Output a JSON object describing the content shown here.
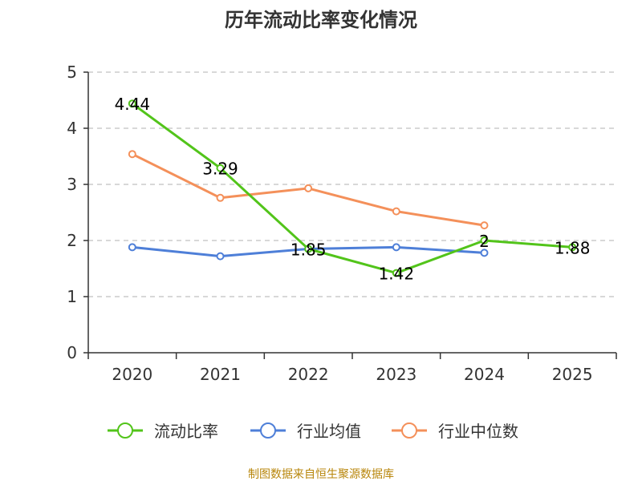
{
  "chart_data": {
    "type": "line",
    "title": "历年流动比率变化情况",
    "categories": [
      "2020",
      "2021",
      "2022",
      "2023",
      "2024",
      "2025"
    ],
    "ylim": [
      0,
      5
    ],
    "yticks": [
      "0",
      "1",
      "2",
      "3",
      "4",
      "5"
    ],
    "grid": true,
    "legend_position": "bottom",
    "series": [
      {
        "name": "流动比率",
        "color": "#52c41a",
        "values": [
          4.44,
          3.29,
          1.85,
          1.42,
          2.0,
          1.88
        ],
        "labels": [
          "4.44",
          "3.29",
          "1.85",
          "1.42",
          "2",
          "1.88"
        ]
      },
      {
        "name": "行业均值",
        "color": "#4e7fd8",
        "values": [
          1.88,
          1.72,
          1.85,
          1.88,
          1.78,
          null
        ]
      },
      {
        "name": "行业中位数",
        "color": "#f4905a",
        "values": [
          3.54,
          2.76,
          2.93,
          2.52,
          2.27,
          null
        ]
      }
    ],
    "source": "制图数据来自恒生聚源数据库"
  }
}
